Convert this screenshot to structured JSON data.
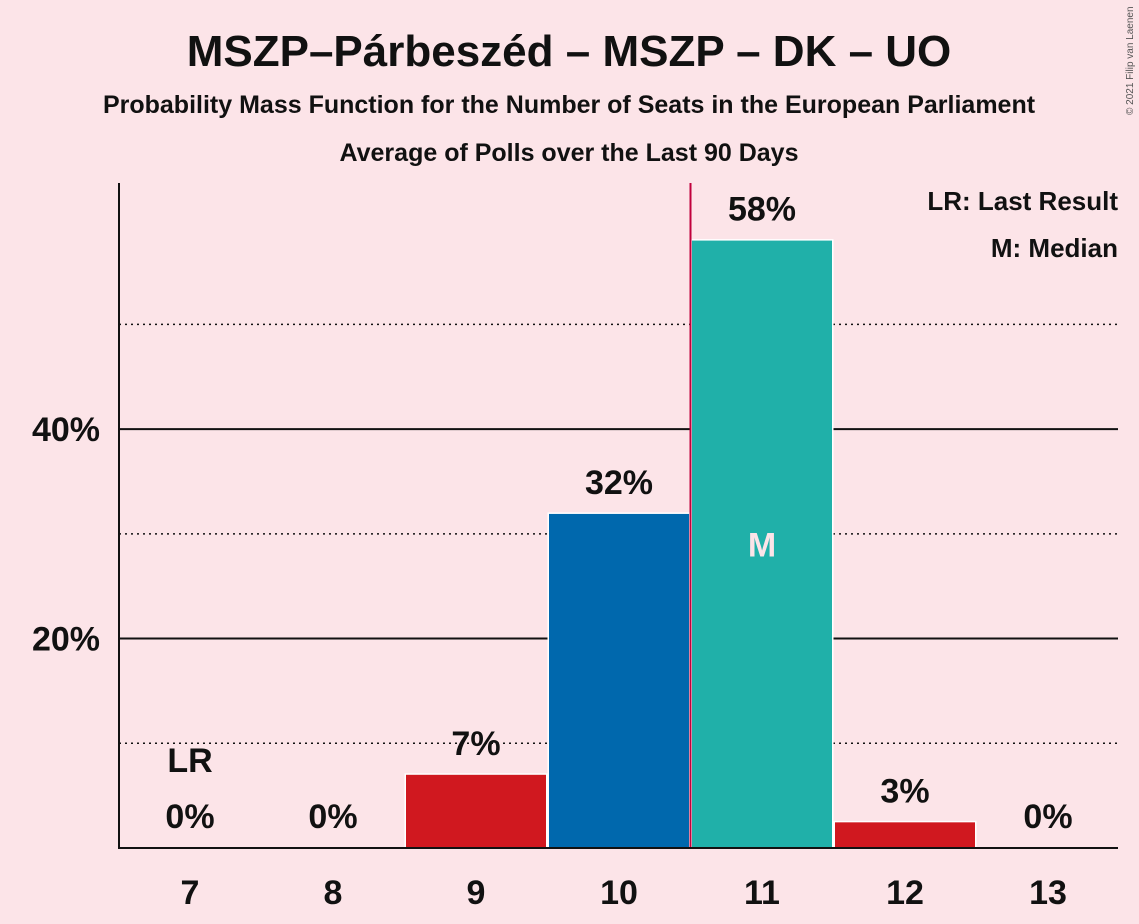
{
  "title": "MSZP–Párbeszéd – MSZP – DK – UO",
  "subtitle": "Probability Mass Function for the Number of Seats in the European Parliament",
  "subtitle2": "Average of Polls over the Last 90 Days",
  "copyright": "© 2021 Filip van Laenen",
  "legend": {
    "last_result": "LR: Last Result",
    "median": "M: Median"
  },
  "colors": {
    "background": "#fce4e8",
    "red": "#d0181f",
    "blue": "#0068ad",
    "teal": "#20b0a9",
    "median_line": "#c0003c"
  },
  "chart_data": {
    "type": "bar",
    "categories": [
      "7",
      "8",
      "9",
      "10",
      "11",
      "12",
      "13"
    ],
    "values": [
      0,
      0,
      7,
      32,
      58,
      3,
      0
    ],
    "value_labels": [
      "0%",
      "0%",
      "7%",
      "32%",
      "58%",
      "3%",
      "0%"
    ],
    "bar_colors": [
      "#d0181f",
      "#d0181f",
      "#d0181f",
      "#0068ad",
      "#20b0a9",
      "#d0181f",
      "#d0181f"
    ],
    "plotted_values": [
      0,
      0,
      6.99,
      31.9,
      58.0,
      2.45,
      0
    ],
    "ylim": [
      0,
      63.5
    ],
    "y_ticks": [
      {
        "value": 20,
        "label": "20%"
      },
      {
        "value": 40,
        "label": "40%"
      }
    ],
    "dotted_gridlines": [
      10,
      30,
      50
    ],
    "last_result": {
      "category": "7",
      "label": "LR"
    },
    "median": {
      "category": "11",
      "label": "M"
    },
    "xlabel": "",
    "ylabel": ""
  }
}
